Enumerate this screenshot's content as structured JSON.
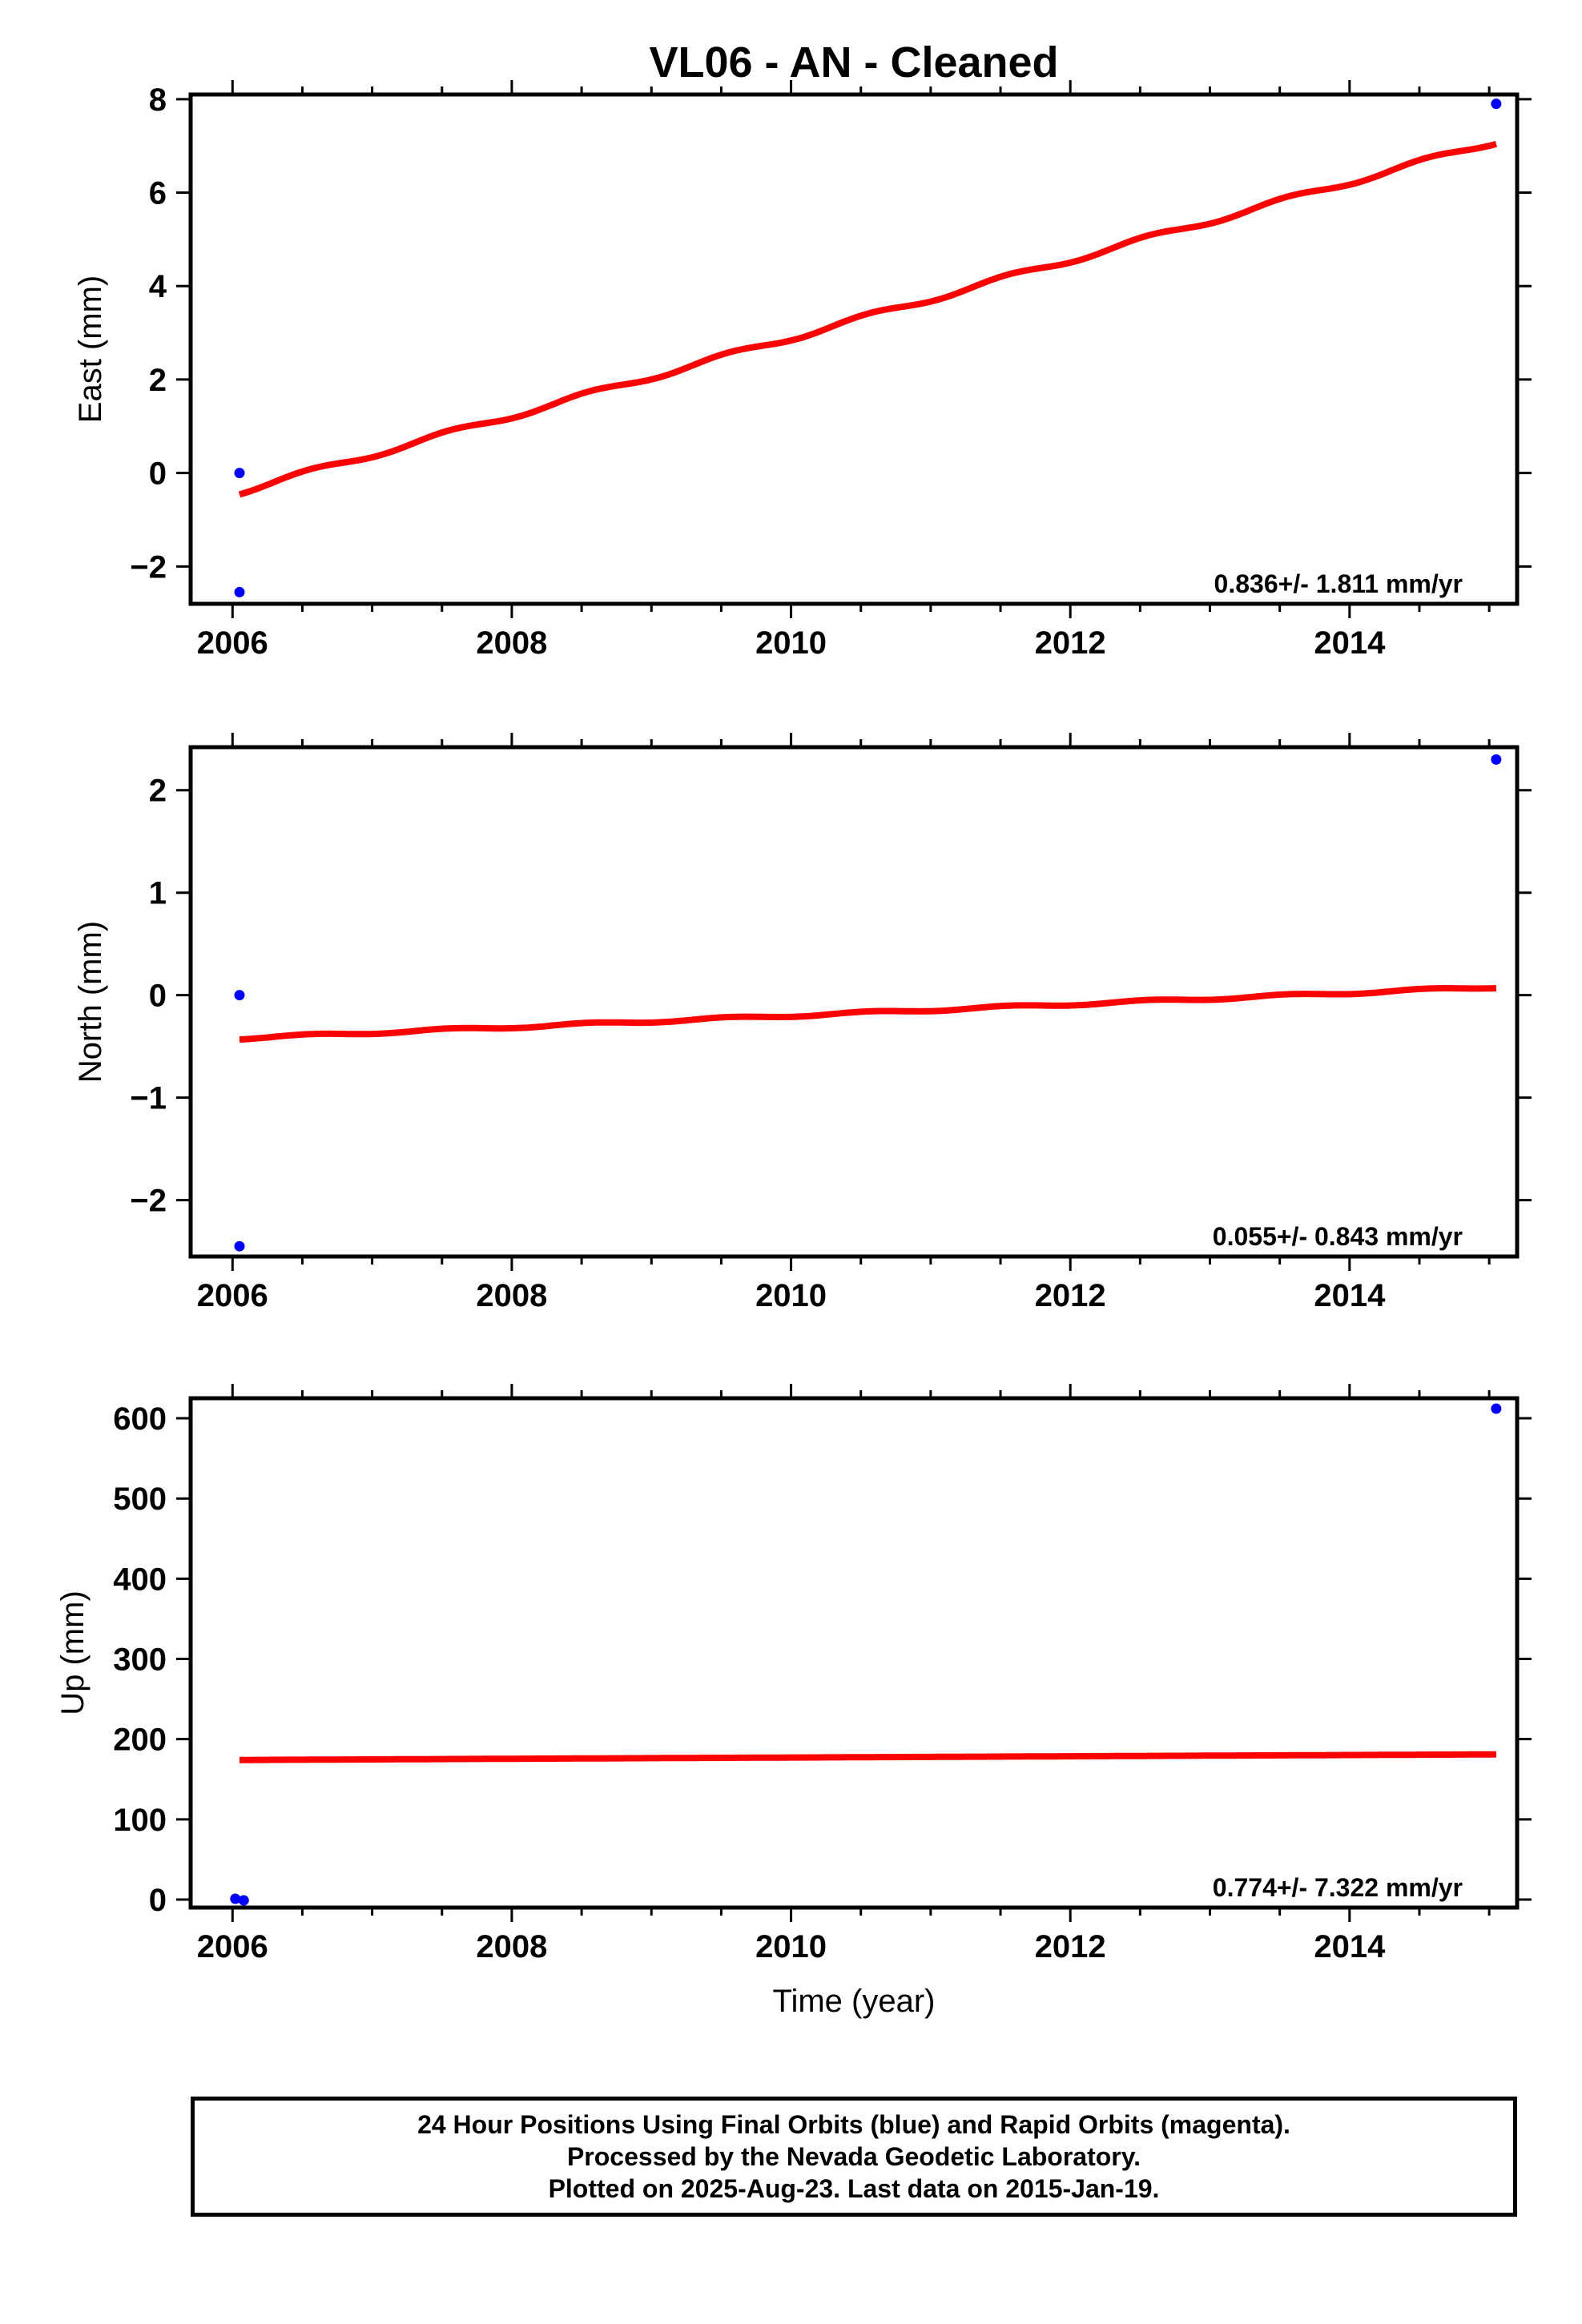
{
  "title": "VL06  - AN - Cleaned",
  "xlabel": "Time (year)",
  "colors": {
    "final_orbits": "#0000ff",
    "rapid_orbits": "#ff00ff",
    "trend": "#ff0000"
  },
  "footer": {
    "line1": "24 Hour Positions Using Final Orbits (blue) and Rapid Orbits (magenta).",
    "line2": "Processed by the Nevada Geodetic Laboratory.",
    "line3": "Plotted on 2025-Aug-23. Last data on 2015-Jan-19."
  },
  "chart_data": [
    {
      "type": "scatter",
      "name": "east",
      "ylabel": "East (mm)",
      "xlim": [
        2005.7,
        2015.2
      ],
      "ylim": [
        -2.8,
        8.1
      ],
      "x_ticks": [
        2006,
        2008,
        2010,
        2012,
        2014
      ],
      "y_ticks": [
        -2,
        0,
        2,
        4,
        6,
        8
      ],
      "y_tick_labels": [
        "−2",
        "0",
        "2",
        "4",
        "6",
        "8"
      ],
      "rate_label": "0.836+/- 1.811 mm/yr",
      "points": [
        {
          "x": 2006.05,
          "y": -2.55
        },
        {
          "x": 2006.05,
          "y": 0.0
        },
        {
          "x": 2015.05,
          "y": 7.9
        }
      ],
      "trend": {
        "x_start": 2006.05,
        "x_end": 2015.05,
        "y_start": -0.4,
        "y_end": 7.1,
        "seasonal_amplitude": 0.06
      }
    },
    {
      "type": "scatter",
      "name": "north",
      "ylabel": "North (mm)",
      "xlim": [
        2005.7,
        2015.2
      ],
      "ylim": [
        -2.55,
        2.42
      ],
      "x_ticks": [
        2006,
        2008,
        2010,
        2012,
        2014
      ],
      "y_ticks": [
        -2,
        -1,
        0,
        1,
        2
      ],
      "y_tick_labels": [
        "−2",
        "−1",
        "0",
        "1",
        "2"
      ],
      "rate_label": "0.055+/- 0.843 mm/yr",
      "points": [
        {
          "x": 2006.05,
          "y": -2.45
        },
        {
          "x": 2006.05,
          "y": 0.0
        },
        {
          "x": 2015.05,
          "y": 2.3
        }
      ],
      "trend": {
        "x_start": 2006.05,
        "x_end": 2015.05,
        "y_start": -0.42,
        "y_end": 0.08,
        "seasonal_amplitude": 0.012
      }
    },
    {
      "type": "scatter",
      "name": "up",
      "ylabel": "Up (mm)",
      "xlim": [
        2005.7,
        2015.2
      ],
      "ylim": [
        -10,
        625
      ],
      "x_ticks": [
        2006,
        2008,
        2010,
        2012,
        2014
      ],
      "y_ticks": [
        0,
        100,
        200,
        300,
        400,
        500,
        600
      ],
      "y_tick_labels": [
        "0",
        "100",
        "200",
        "300",
        "400",
        "500",
        "600"
      ],
      "rate_label": "0.774+/- 7.322 mm/yr",
      "points": [
        {
          "x": 2006.02,
          "y": 1.0
        },
        {
          "x": 2006.08,
          "y": -1.0
        },
        {
          "x": 2015.05,
          "y": 612.0
        }
      ],
      "trend": {
        "x_start": 2006.05,
        "x_end": 2015.05,
        "y_start": 174.0,
        "y_end": 181.0,
        "seasonal_amplitude": 0.0
      }
    }
  ]
}
